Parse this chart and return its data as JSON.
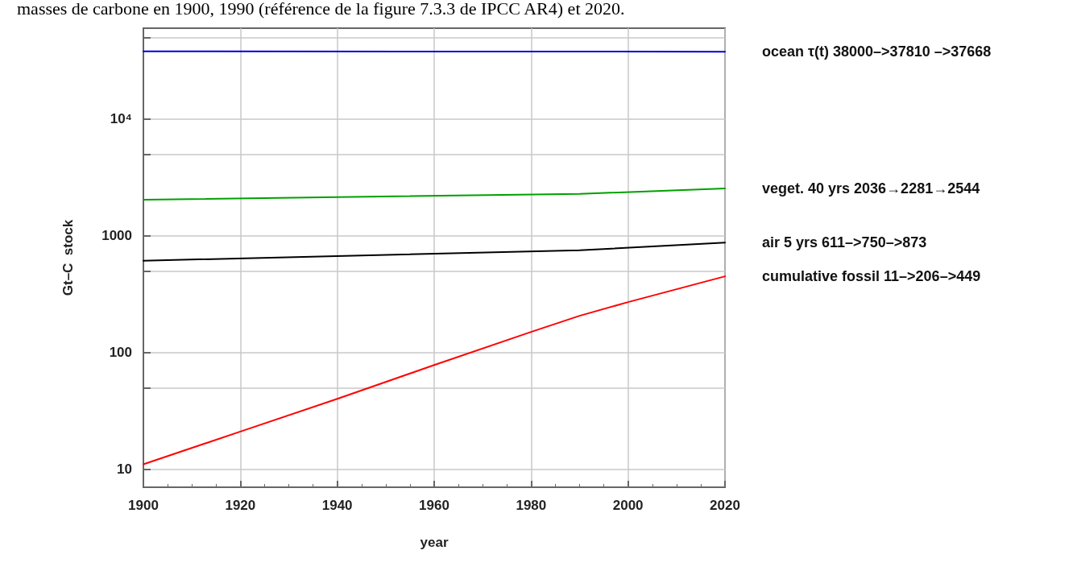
{
  "chart_data": {
    "type": "line",
    "title": "masses de carbone en 1900, 1990 (référence de la figure 7.3.3 de IPCC AR4) et 2020.",
    "xlabel": "year",
    "ylabel": "Gt–C  stock",
    "series": [
      {
        "name": "ocean τ(t) 38000–>37810 –>37668",
        "color": "#0000dd",
        "x": [
          1900,
          1990,
          2020
        ],
        "values": [
          38000,
          37810,
          37668
        ]
      },
      {
        "name": "veget. 40 yrs 2036→2281→2544",
        "color": "#00a000",
        "x": [
          1900,
          1990,
          2020
        ],
        "values": [
          2036,
          2281,
          2544
        ]
      },
      {
        "name": "air 5 yrs 611–>750–>873",
        "color": "#000000",
        "x": [
          1900,
          1990,
          2020
        ],
        "values": [
          611,
          750,
          873
        ]
      },
      {
        "name": "cumulative fossil 11–>206–>449",
        "color": "#ff0000",
        "x": [
          1900,
          1920,
          1940,
          1960,
          1980,
          1990,
          2000,
          2020
        ],
        "values": [
          11,
          21,
          40,
          78,
          150,
          206,
          270,
          449
        ]
      }
    ],
    "xlim": [
      1900,
      2020
    ],
    "xticks": [
      1900,
      1920,
      1940,
      1960,
      1980,
      2000,
      2020
    ],
    "ylim": [
      7,
      60000
    ],
    "yticks": [
      10,
      {
        "value": 50,
        "label": null
      },
      100,
      {
        "value": 500,
        "label": null
      },
      1000,
      {
        "value": 5000,
        "label": null
      },
      {
        "value": 10000,
        "label": "10⁴"
      },
      {
        "value": 50000,
        "label": null
      }
    ],
    "log": "y",
    "grid": true,
    "legend": false,
    "marker": "none",
    "line_style": "solid"
  }
}
